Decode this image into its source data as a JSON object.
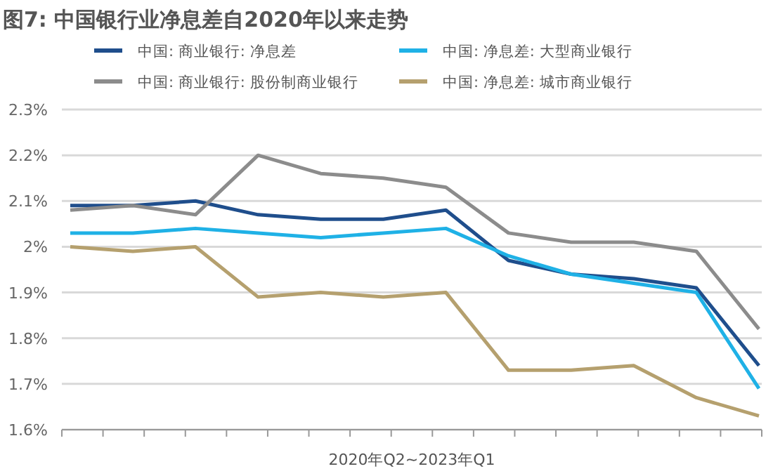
{
  "chart_data": {
    "type": "line",
    "title": "图7: 中国银行业净息差自2020年以来走势",
    "xlabel": "2020年Q2~2023年Q1",
    "categories": [
      null,
      null,
      null,
      null,
      null,
      null,
      null,
      null,
      null,
      null,
      null,
      null
    ],
    "series": [
      {
        "name": "中国: 商业银行: 净息差",
        "color": "#1f4e8c",
        "values": [
          2.09,
          2.09,
          2.1,
          2.07,
          2.06,
          2.06,
          2.08,
          1.97,
          1.94,
          1.93,
          1.91,
          1.74
        ]
      },
      {
        "name": "中国: 净息差: 大型商业银行",
        "color": "#1fb1e6",
        "values": [
          2.03,
          2.03,
          2.04,
          2.03,
          2.02,
          2.03,
          2.04,
          1.98,
          1.94,
          1.92,
          1.9,
          1.69
        ]
      },
      {
        "name": "中国: 商业银行: 股份制商业银行",
        "color": "#8c8c8c",
        "values": [
          2.08,
          2.09,
          2.07,
          2.2,
          2.16,
          2.15,
          2.13,
          2.03,
          2.01,
          2.01,
          1.99,
          1.82
        ]
      },
      {
        "name": "中国: 净息差: 城市商业银行",
        "color": "#b5a06e",
        "values": [
          2.0,
          1.99,
          2.0,
          1.89,
          1.9,
          1.89,
          1.9,
          1.73,
          1.73,
          1.74,
          1.67,
          1.63
        ]
      }
    ],
    "ylim": [
      1.6,
      2.3
    ],
    "yticks": [
      {
        "value": 1.6,
        "label": "1.6%"
      },
      {
        "value": 1.7,
        "label": "1.7%"
      },
      {
        "value": 1.8,
        "label": "1.8%"
      },
      {
        "value": 1.9,
        "label": "1.9%"
      },
      {
        "value": 2,
        "label": "2%"
      },
      {
        "value": 2.1,
        "label": "2.1%"
      },
      {
        "value": 2.2,
        "label": "2.2%"
      },
      {
        "value": 2.3,
        "label": "2.3%"
      }
    ],
    "grid": "y",
    "legend": "top",
    "marker": "none",
    "line_style": "solid"
  }
}
